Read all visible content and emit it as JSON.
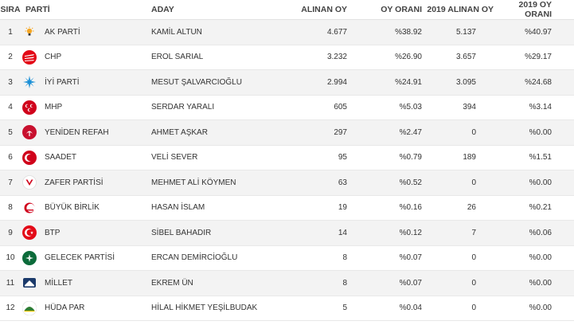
{
  "headers": {
    "rank": "SIRA",
    "party": "PARTİ",
    "candidate": "ADAY",
    "votes": "ALINAN OY",
    "share": "OY ORANI",
    "votes2019": "2019 ALINAN OY",
    "share2019": "2019 OY ORANI"
  },
  "rows": [
    {
      "rank": "1",
      "party": "AK PARTİ",
      "candidate": "KAMİL ALTUN",
      "votes": "4.677",
      "share": "%38.92",
      "votes2019": "5.137",
      "share2019": "%40.97",
      "logo": "akp-bulb-icon",
      "color": "#f5a623"
    },
    {
      "rank": "2",
      "party": "CHP",
      "candidate": "EROL SARIAL",
      "votes": "3.232",
      "share": "%26.90",
      "votes2019": "3.657",
      "share2019": "%29.17",
      "logo": "chp-six-arrows-icon",
      "color": "#e30a17"
    },
    {
      "rank": "3",
      "party": "İYİ PARTİ",
      "candidate": "MESUT ŞALVARCIOĞLU",
      "votes": "2.994",
      "share": "%24.91",
      "votes2019": "3.095",
      "share2019": "%24.68",
      "logo": "iyi-sun-icon",
      "color": "#1a8fd6"
    },
    {
      "rank": "4",
      "party": "MHP",
      "candidate": "SERDAR YARALI",
      "votes": "605",
      "share": "%5.03",
      "votes2019": "394",
      "share2019": "%3.14",
      "logo": "mhp-crescents-icon",
      "color": "#d0021b"
    },
    {
      "rank": "5",
      "party": "YENİDEN REFAH",
      "candidate": "AHMET AŞKAR",
      "votes": "297",
      "share": "%2.47",
      "votes2019": "0",
      "share2019": "%0.00",
      "logo": "yeniden-refah-icon",
      "color": "#c8102e"
    },
    {
      "rank": "6",
      "party": "SAADET",
      "candidate": "VELİ SEVER",
      "votes": "95",
      "share": "%0.79",
      "votes2019": "189",
      "share2019": "%1.51",
      "logo": "saadet-crescent-icon",
      "color": "#d0021b"
    },
    {
      "rank": "7",
      "party": "ZAFER PARTİSİ",
      "candidate": "MEHMET ALİ KÖYMEN",
      "votes": "63",
      "share": "%0.52",
      "votes2019": "0",
      "share2019": "%0.00",
      "logo": "zafer-v-icon",
      "color": "#d0021b"
    },
    {
      "rank": "8",
      "party": "BÜYÜK BİRLİK",
      "candidate": "HASAN İSLAM",
      "votes": "19",
      "share": "%0.16",
      "votes2019": "26",
      "share2019": "%0.21",
      "logo": "bbp-crescent-icon",
      "color": "#d0021b"
    },
    {
      "rank": "9",
      "party": "BTP",
      "candidate": "SİBEL BAHADIR",
      "votes": "14",
      "share": "%0.12",
      "votes2019": "7",
      "share2019": "%0.06",
      "logo": "btp-star-icon",
      "color": "#e30a17"
    },
    {
      "rank": "10",
      "party": "GELECEK PARTİSİ",
      "candidate": "ERCAN DEMİRCİOĞLU",
      "votes": "8",
      "share": "%0.07",
      "votes2019": "0",
      "share2019": "%0.00",
      "logo": "gelecek-leaf-icon",
      "color": "#0b6b3a"
    },
    {
      "rank": "11",
      "party": "MİLLET",
      "candidate": "EKREM ÜN",
      "votes": "8",
      "share": "%0.07",
      "votes2019": "0",
      "share2019": "%0.00",
      "logo": "millet-flag-icon",
      "color": "#1b3a6b"
    },
    {
      "rank": "12",
      "party": "HÜDA PAR",
      "candidate": "HİLAL HİKMET YEŞİLBUDAK",
      "votes": "5",
      "share": "%0.04",
      "votes2019": "0",
      "share2019": "%0.00",
      "logo": "huda-par-icon",
      "color": "#2e7d32"
    }
  ]
}
